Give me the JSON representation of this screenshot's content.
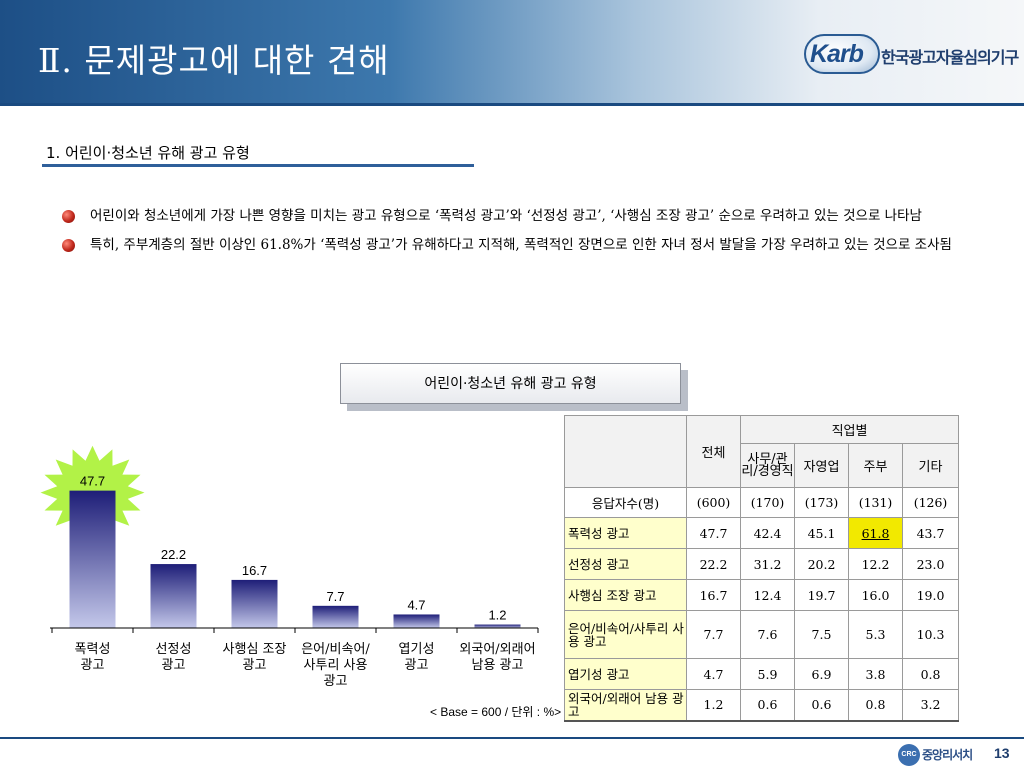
{
  "header": {
    "title": "Ⅱ. 문제광고에 대한 견해",
    "logo_text": "Karb",
    "logo_name": "한국광고자율심의기구"
  },
  "section": {
    "title": "1. 어린이·청소년 유해 광고 유형",
    "bullets": [
      "어린이와 청소년에게 가장 나쁜 영향을 미치는 광고 유형으로 ‘폭력성 광고’와 ‘선정성 광고’, ‘사행심 조장 광고’ 순으로 우려하고 있는 것으로 나타남",
      "특히, 주부계층의 절반 이상인 61.8%가 ‘폭력성 광고’가 유해하다고 지적해, 폭력적인 장면으로 인한 자녀 정서 발달을 가장 우려하고 있는 것으로 조사됨"
    ]
  },
  "chart_box_title": "어린이·청소년 유해 광고 유형",
  "chart_data": {
    "type": "bar",
    "categories": [
      "폭력성 광고",
      "선정성 광고",
      "사행심 조장 광고",
      "은어/비속어/사투리 사용 광고",
      "엽기성 광고",
      "외국어/외래어 남용 광고"
    ],
    "category_lines": [
      [
        "폭력성",
        "광고"
      ],
      [
        "선정성",
        "광고"
      ],
      [
        "사행심 조장",
        "광고"
      ],
      [
        "은어/비속어/",
        "사투리 사용",
        "광고"
      ],
      [
        "엽기성",
        "광고"
      ],
      [
        "외국어/외래어",
        "남용 광고"
      ]
    ],
    "values": [
      47.7,
      22.2,
      16.7,
      7.7,
      4.7,
      1.2
    ],
    "value_labels": [
      "47.7",
      "22.2",
      "16.7",
      "7.7",
      "4.7",
      "1.2"
    ],
    "ylim": [
      0,
      50
    ],
    "highlight_index": 0,
    "colors": {
      "bar_top": "#1e1e78",
      "bar_bottom": "#c4c8ea",
      "burst": "#b2f247"
    },
    "grid": false
  },
  "base_note": "< Base = 600 / 단위 : %>",
  "table": {
    "total_label": "전체",
    "group_label": "직업별",
    "columns": [
      "사무/관리/경영직",
      "자영업",
      "주부",
      "기타"
    ],
    "count_row": {
      "label": "응답자수(명)",
      "values": [
        "(600)",
        "(170)",
        "(173)",
        "(131)",
        "(126)"
      ]
    },
    "rows": [
      {
        "label": "폭력성 광고",
        "values": [
          "47.7",
          "42.4",
          "45.1",
          "61.8",
          "43.7"
        ]
      },
      {
        "label": "선정성 광고",
        "values": [
          "22.2",
          "31.2",
          "20.2",
          "12.2",
          "23.0"
        ]
      },
      {
        "label": "사행심 조장 광고",
        "values": [
          "16.7",
          "12.4",
          "19.7",
          "16.0",
          "19.0"
        ]
      },
      {
        "label": "은어/비속어/사투리 사용 광고",
        "values": [
          "7.7",
          "7.6",
          "7.5",
          "5.3",
          "10.3"
        ]
      },
      {
        "label": "엽기성 광고",
        "values": [
          "4.7",
          "5.9",
          "6.9",
          "3.8",
          "0.8"
        ]
      },
      {
        "label": "외국어/외래어 남용 광고",
        "values": [
          "1.2",
          "0.6",
          "0.6",
          "0.8",
          "3.2"
        ]
      }
    ]
  },
  "footer": {
    "logo_mark": "CRC",
    "logo_name": "중앙리서치",
    "page_number": "13"
  }
}
